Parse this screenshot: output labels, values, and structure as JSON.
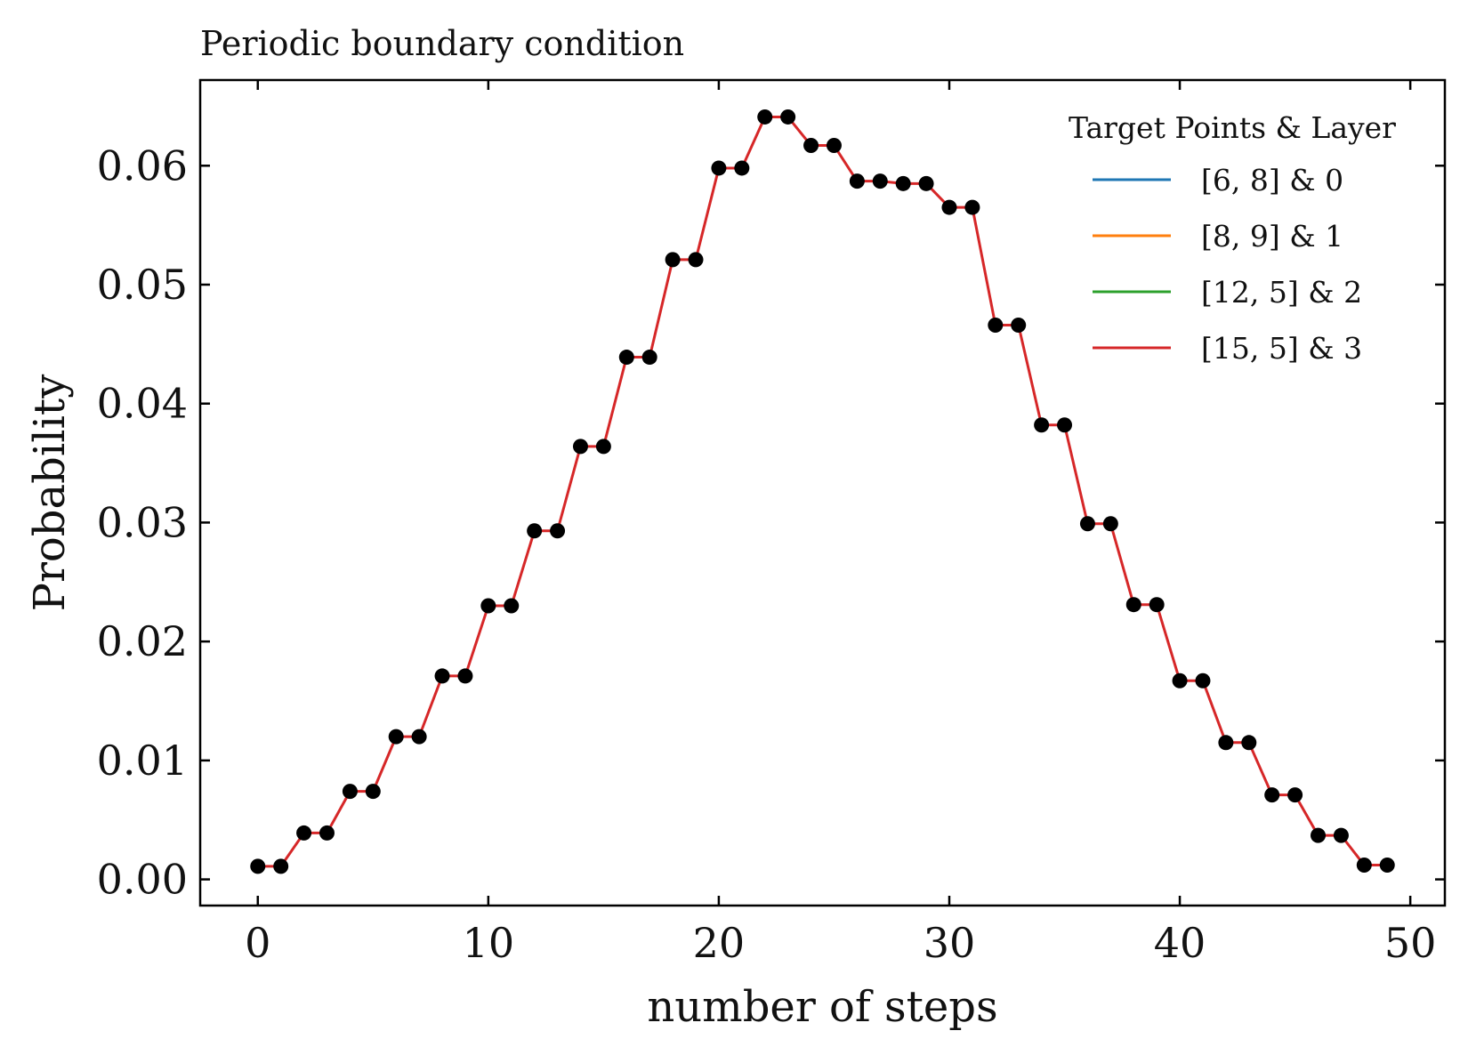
{
  "chart_data": {
    "type": "line",
    "title": "Periodic boundary condition",
    "xlabel": "number of steps",
    "ylabel": "Probability",
    "xlim": [
      -2.5,
      51.5
    ],
    "ylim": [
      -0.0022,
      0.0672
    ],
    "xticks": [
      0,
      10,
      20,
      30,
      40,
      50
    ],
    "xtick_labels": [
      "0",
      "10",
      "20",
      "30",
      "40",
      "50"
    ],
    "yticks": [
      0.0,
      0.01,
      0.02,
      0.03,
      0.04,
      0.05,
      0.06
    ],
    "ytick_labels": [
      "0.00",
      "0.01",
      "0.02",
      "0.03",
      "0.04",
      "0.05",
      "0.06"
    ],
    "grid": false,
    "legend": {
      "title": "Target Points & Layer",
      "location": "top-right",
      "entries": [
        {
          "label": "[6, 8] & 0",
          "color": "#1f77b4"
        },
        {
          "label": "[8, 9] & 1",
          "color": "#ff7f0e"
        },
        {
          "label": "[12, 5] & 2",
          "color": "#2ca02c"
        },
        {
          "label": "[15, 5] & 3",
          "color": "#d62728"
        }
      ]
    },
    "x": [
      0,
      1,
      2,
      3,
      4,
      5,
      6,
      7,
      8,
      9,
      10,
      11,
      12,
      13,
      14,
      15,
      16,
      17,
      18,
      19,
      20,
      21,
      22,
      23,
      24,
      25,
      26,
      27,
      28,
      29,
      30,
      31,
      32,
      33,
      34,
      35,
      36,
      37,
      38,
      39,
      40,
      41,
      42,
      43,
      44,
      45,
      46,
      47,
      48,
      49
    ],
    "series": [
      {
        "name": "[15, 5] & 3",
        "color": "#d62728",
        "values": [
          0.0011,
          0.0011,
          0.0039,
          0.0039,
          0.0074,
          0.0074,
          0.012,
          0.012,
          0.0171,
          0.0171,
          0.023,
          0.023,
          0.0293,
          0.0293,
          0.0364,
          0.0364,
          0.0439,
          0.0439,
          0.0521,
          0.0521,
          0.0598,
          0.0598,
          0.0641,
          0.0641,
          0.0617,
          0.0617,
          0.0587,
          0.0587,
          0.0585,
          0.0585,
          0.0565,
          0.0565,
          0.0466,
          0.0466,
          0.0382,
          0.0382,
          0.0299,
          0.0299,
          0.0231,
          0.0231,
          0.0167,
          0.0167,
          0.0115,
          0.0115,
          0.0071,
          0.0071,
          0.0037,
          0.0037,
          0.0012,
          0.0012
        ]
      }
    ],
    "marker_color": "#000000"
  }
}
